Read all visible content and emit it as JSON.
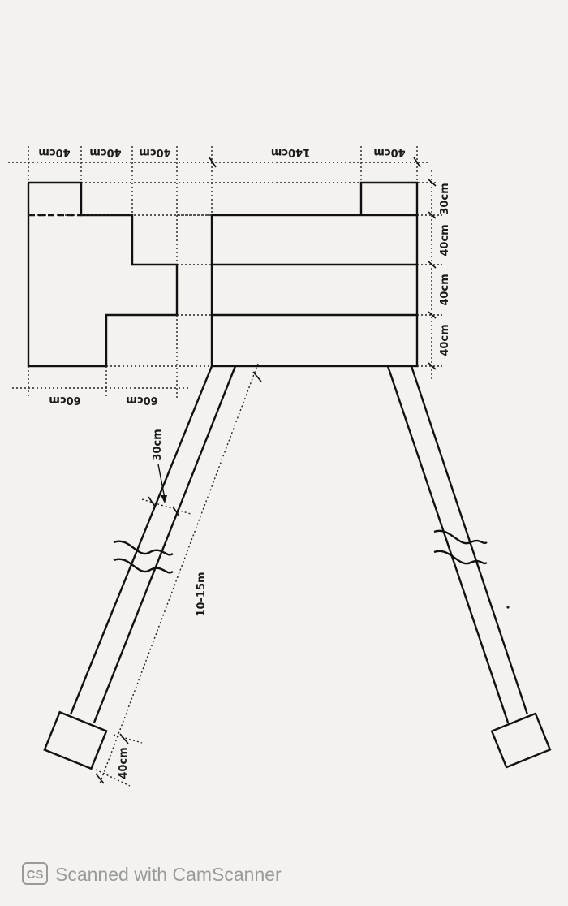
{
  "dimensions": {
    "top_left_1": "40cm",
    "top_left_2": "40cm",
    "top_left_3": "40cm",
    "top_right_wide": "140cm",
    "top_right_narrow": "40cm",
    "right_1": "30cm",
    "right_2": "40cm",
    "right_3": "40cm",
    "right_4": "40cm",
    "left_bottom_1": "60cm",
    "left_bottom_2": "60cm",
    "leg_width": "30cm",
    "leg_length": "10-15m",
    "foot_size": "40cm"
  },
  "watermark": {
    "logo": "CS",
    "text": "Scanned with CamScanner"
  },
  "colors": {
    "paper": "#f3f2ef",
    "ink": "#111111",
    "watermark": "#9a9a9a"
  }
}
